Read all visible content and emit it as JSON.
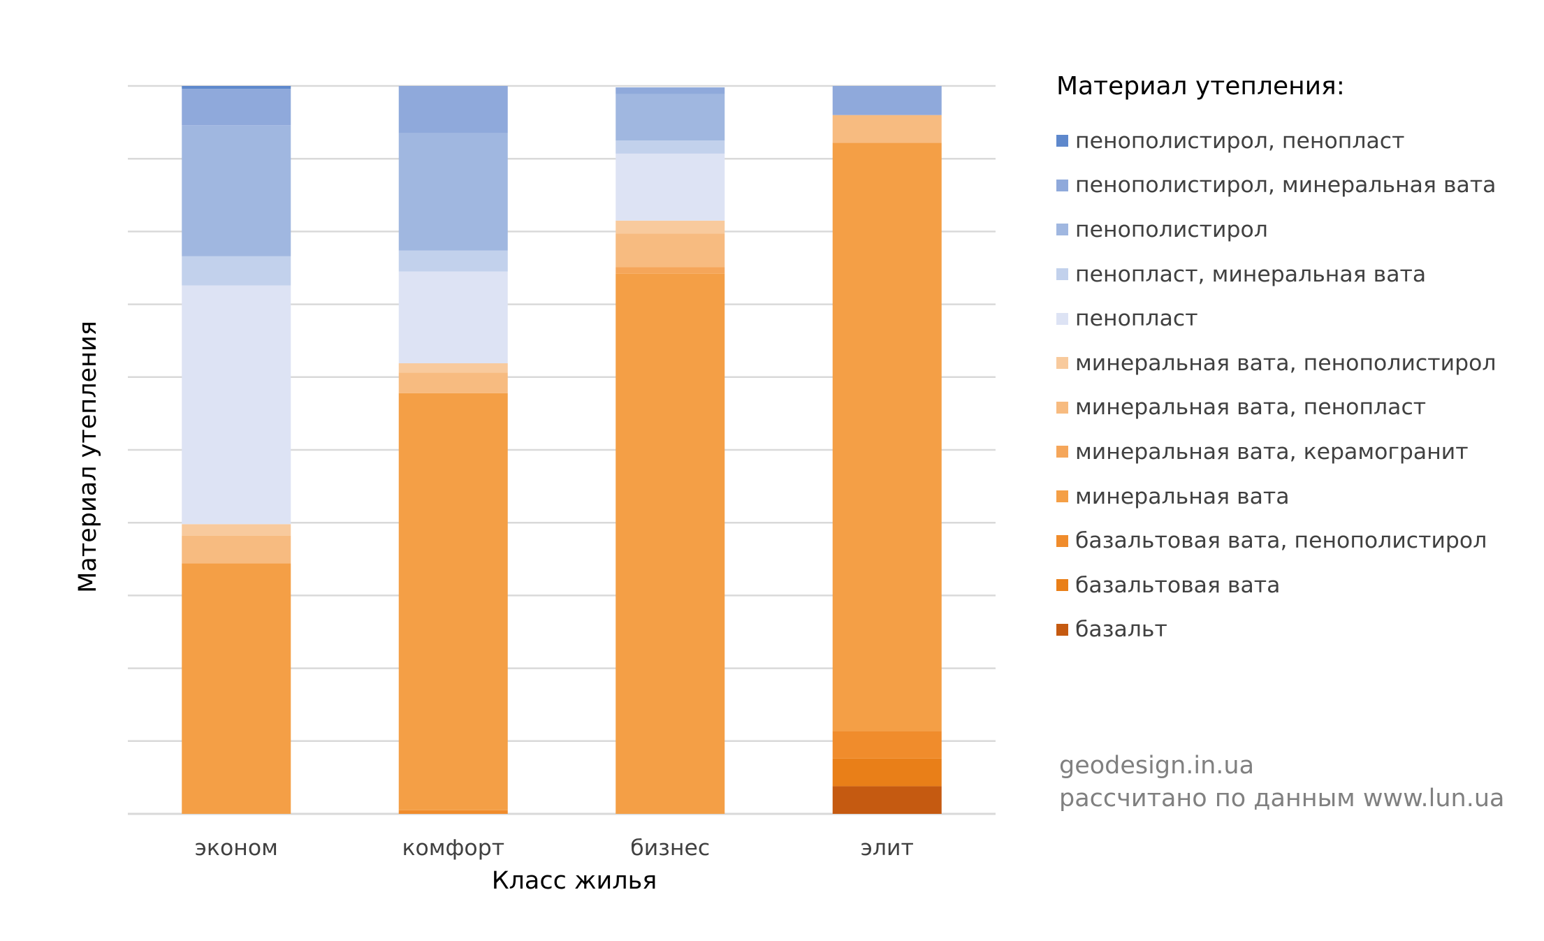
{
  "chart_data": {
    "type": "bar",
    "stacked": true,
    "normalized": true,
    "categories": [
      "эконом",
      "комфорт",
      "бизнес",
      "элит"
    ],
    "xlabel": "Класс жилья",
    "ylabel": "Материал  утепления",
    "ylim": [
      0,
      100
    ],
    "grid": true,
    "legend_position": "right",
    "legend_title": "Материал утепления:",
    "series": [
      {
        "name": "базальт",
        "color": "#C55A11",
        "values": [
          0,
          0,
          0,
          3.8
        ]
      },
      {
        "name": "базальтовая вата",
        "color": "#E97F18",
        "values": [
          0,
          0,
          0,
          3.8
        ]
      },
      {
        "name": "базальтовая вата, пенополистирол",
        "color": "#F08C2C",
        "values": [
          0,
          0.5,
          0,
          3.8
        ]
      },
      {
        "name": "минеральная вата",
        "color": "#F49F46",
        "values": [
          34.4,
          57.3,
          74.2,
          80.8
        ]
      },
      {
        "name": "минеральная вата, керамогранит",
        "color": "#F5A65A",
        "values": [
          0,
          0,
          0.9,
          0
        ]
      },
      {
        "name": "минеральная вата, пенопласт",
        "color": "#F7BB80",
        "values": [
          3.8,
          2.8,
          4.6,
          3.8
        ]
      },
      {
        "name": "минеральная вата, пенополистирол",
        "color": "#F8CA9D",
        "values": [
          1.6,
          1.3,
          1.8,
          0
        ]
      },
      {
        "name": "пенопласт",
        "color": "#DDE3F4",
        "values": [
          32.8,
          12.6,
          9.2,
          0
        ]
      },
      {
        "name": "пенопласт, минеральная вата",
        "color": "#C2D1EC",
        "values": [
          4.0,
          2.9,
          1.8,
          0
        ]
      },
      {
        "name": "пенополистирол",
        "color": "#A0B7E0",
        "values": [
          18.0,
          16.1,
          6.4,
          0
        ]
      },
      {
        "name": "пенополистирол, минеральная вата",
        "color": "#8FA9DB",
        "values": [
          5.0,
          6.5,
          0.9,
          4.0
        ]
      },
      {
        "name": "пенополистирол, пенопласт",
        "color": "#5E88CC",
        "values": [
          0.4,
          0,
          0,
          0
        ]
      }
    ]
  },
  "credits": {
    "site": "geodesign.in.ua",
    "source": "рассчитано по данным www.lun.ua"
  }
}
